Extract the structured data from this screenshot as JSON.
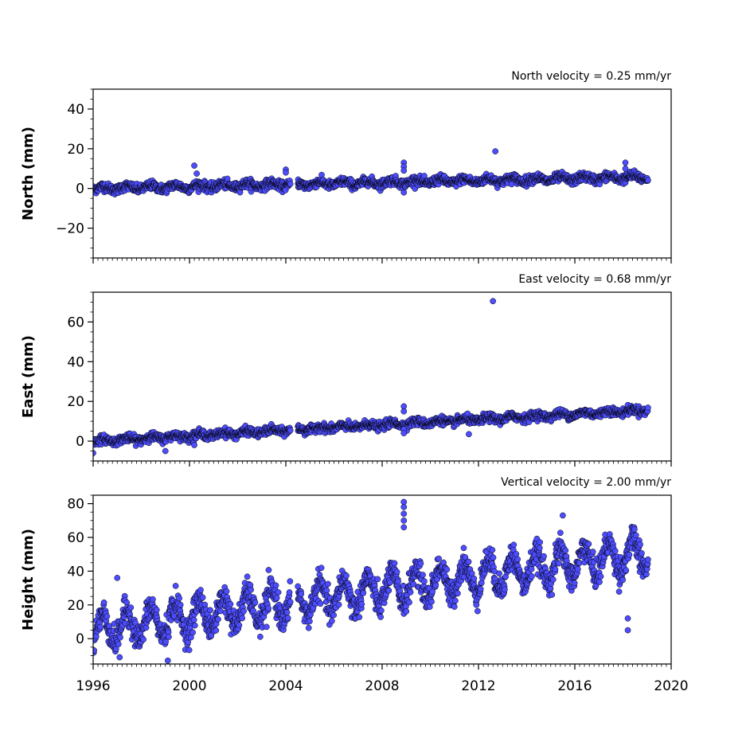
{
  "chart_data": [
    {
      "type": "scatter",
      "annotation": "North velocity = 0.25 mm/yr",
      "ylabel": "North (mm)",
      "xlim": [
        1996,
        2020
      ],
      "ylim": [
        -35,
        50
      ],
      "yticks": [
        40,
        20,
        0,
        -20
      ],
      "yticklabels": [
        "40",
        "20",
        "0",
        "−20"
      ],
      "xticks": [
        1996,
        2000,
        2004,
        2008,
        2012,
        2016,
        2020
      ],
      "xticklabels": [],
      "marker_color": "#4d4dff",
      "data_extent": [
        1996.0,
        2019.05
      ],
      "gaps": [
        [
          2004.2,
          2004.5
        ]
      ],
      "trend": {
        "start_value": 0.0,
        "slope": 0.25
      },
      "seasonal_amplitude": 1.0,
      "scatter_sd": 1.1,
      "outliers": [
        {
          "x": 2000.2,
          "y": 11.5
        },
        {
          "x": 2000.3,
          "y": 7.5
        },
        {
          "x": 2012.7,
          "y": 18.7
        },
        {
          "x": 2008.9,
          "y": 13.0
        },
        {
          "x": 2008.9,
          "y": 11.0
        },
        {
          "x": 2008.9,
          "y": 9.0
        },
        {
          "x": 2008.9,
          "y": -2.0
        },
        {
          "x": 2018.1,
          "y": 13.0
        },
        {
          "x": 2018.1,
          "y": 10.0
        },
        {
          "x": 2004.0,
          "y": 9.5
        },
        {
          "x": 2004.0,
          "y": 8.0
        }
      ]
    },
    {
      "type": "scatter",
      "annotation": "East velocity = 0.68 mm/yr",
      "ylabel": "East (mm)",
      "xlim": [
        1996,
        2020
      ],
      "ylim": [
        -10,
        75
      ],
      "yticks": [
        60,
        40,
        20,
        0
      ],
      "yticklabels": [
        "60",
        "40",
        "20",
        "0"
      ],
      "xticks": [
        1996,
        2000,
        2004,
        2008,
        2012,
        2016,
        2020
      ],
      "xticklabels": [],
      "marker_color": "#4d4dff",
      "data_extent": [
        1996.0,
        2019.05
      ],
      "gaps": [
        [
          2004.2,
          2004.5
        ]
      ],
      "trend": {
        "start_value": 0.0,
        "slope": 0.68
      },
      "seasonal_amplitude": 0.8,
      "scatter_sd": 1.0,
      "outliers": [
        {
          "x": 2012.6,
          "y": 70.5
        },
        {
          "x": 2008.9,
          "y": 17.5
        },
        {
          "x": 2008.9,
          "y": 15.0
        },
        {
          "x": 2008.9,
          "y": 6.0
        },
        {
          "x": 2008.9,
          "y": 4.0
        },
        {
          "x": 2011.6,
          "y": 3.5
        },
        {
          "x": 1996.0,
          "y": -6.0
        },
        {
          "x": 1999.0,
          "y": -5.0
        },
        {
          "x": 2000.2,
          "y": -2.0
        }
      ]
    },
    {
      "type": "scatter",
      "annotation": "Vertical velocity = 2.00 mm/yr",
      "ylabel": "Height (mm)",
      "xlim": [
        1996,
        2020
      ],
      "ylim": [
        -15,
        85
      ],
      "yticks": [
        80,
        60,
        40,
        20,
        0
      ],
      "yticklabels": [
        "80",
        "60",
        "40",
        "20",
        "0"
      ],
      "xticks": [
        1996,
        2000,
        2004,
        2008,
        2012,
        2016,
        2020
      ],
      "xticklabels": [
        "1996",
        "2000",
        "2004",
        "2008",
        "2012",
        "2016",
        "2020"
      ],
      "marker_color": "#4d4dff",
      "data_extent": [
        1996.0,
        2019.05
      ],
      "gaps": [
        [
          2004.2,
          2004.5
        ]
      ],
      "trend": {
        "start_value": 5.0,
        "slope": 2.0
      },
      "seasonal_amplitude": 9.0,
      "scatter_sd": 4.0,
      "outliers": [
        {
          "x": 2008.9,
          "y": 81.0
        },
        {
          "x": 2008.9,
          "y": 78.0
        },
        {
          "x": 2008.9,
          "y": 74.0
        },
        {
          "x": 2008.9,
          "y": 70.0
        },
        {
          "x": 2008.9,
          "y": 66.0
        },
        {
          "x": 2015.5,
          "y": 73.0
        },
        {
          "x": 1999.1,
          "y": -13.0
        },
        {
          "x": 1997.1,
          "y": -11.0
        },
        {
          "x": 1997.0,
          "y": 36.0
        },
        {
          "x": 2018.2,
          "y": 12.0
        },
        {
          "x": 2018.2,
          "y": 5.0
        },
        {
          "x": 2003.2,
          "y": 7.0
        }
      ]
    }
  ]
}
